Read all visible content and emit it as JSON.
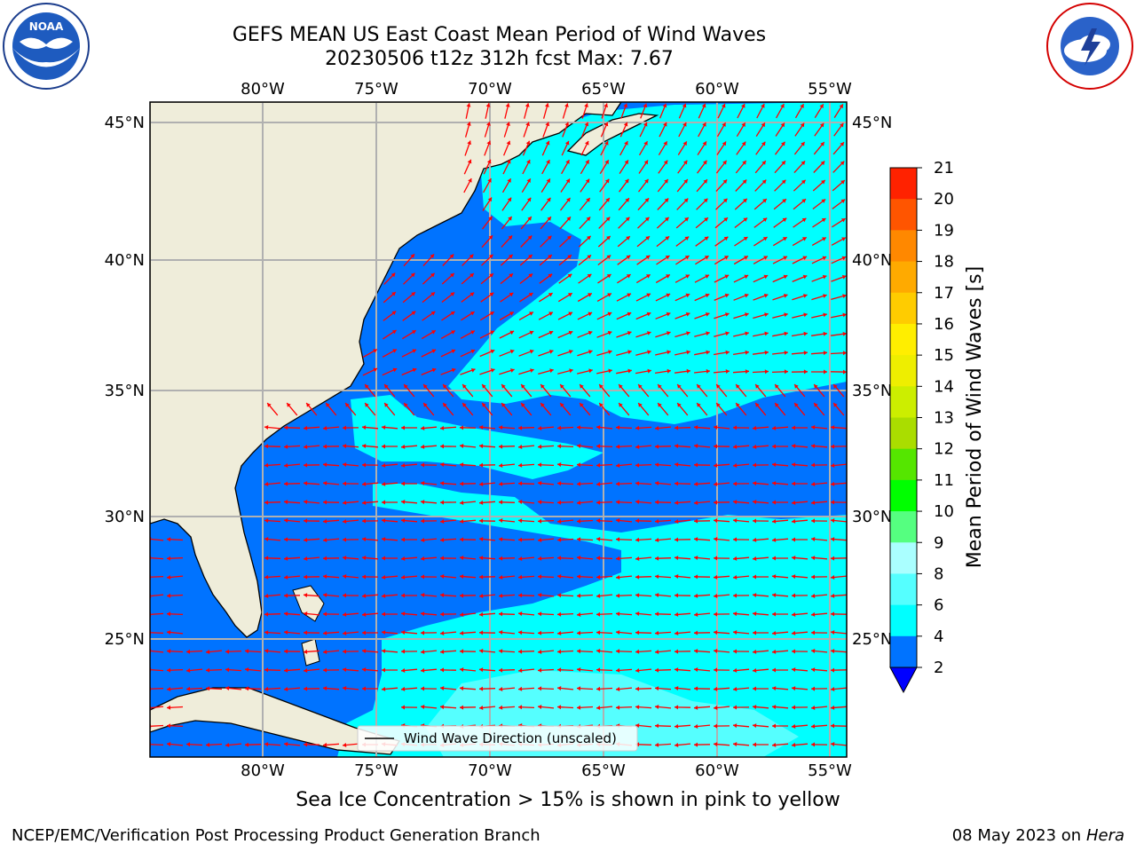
{
  "header": {
    "title_line1": "GEFS MEAN US East Coast Mean Period of Wind Waves",
    "title_line2": "20230506 t12z 312h fcst   Max: 7.67"
  },
  "map": {
    "lon_labels": [
      "80°W",
      "75°W",
      "70°W",
      "65°W",
      "60°W",
      "55°W"
    ],
    "lat_labels": [
      "45°N",
      "40°N",
      "35°N",
      "30°N",
      "25°N"
    ],
    "legend_label": "Wind Wave Direction (unscaled)",
    "colors": {
      "land": "#efedda",
      "sea_low": "#0073ff",
      "sea_mid": "#00ffff",
      "sea_light": "#55ffff",
      "arrow": "#ff0000",
      "grid": "#b0b0b0"
    }
  },
  "colorbar": {
    "label": "Mean Period of Wind Waves [s]",
    "ticks": [
      "2",
      "4",
      "6",
      "8",
      "9",
      "10",
      "11",
      "12",
      "13",
      "14",
      "15",
      "16",
      "17",
      "18",
      "19",
      "20",
      "21"
    ],
    "colors": [
      "#0073ff",
      "#00ffff",
      "#55ffff",
      "#aaffff",
      "#55ff80",
      "#00ff00",
      "#55e600",
      "#aadd00",
      "#ccee00",
      "#eeee00",
      "#ffee00",
      "#ffcc00",
      "#ffaa00",
      "#ff8800",
      "#ff5500",
      "#ff2200",
      "#ff0000"
    ],
    "extend_color": "#0000ff"
  },
  "annotation": "Sea Ice Concentration > 15% is shown in pink to yellow",
  "footer": {
    "left": "NCEP/EMC/Verification Post Processing Product Generation Branch",
    "date": "08 May 2023 on",
    "machine": "Hera"
  },
  "logos": {
    "noaa_text": "NOAA",
    "nws_text": "NATIONAL WEATHER SERVICE"
  }
}
